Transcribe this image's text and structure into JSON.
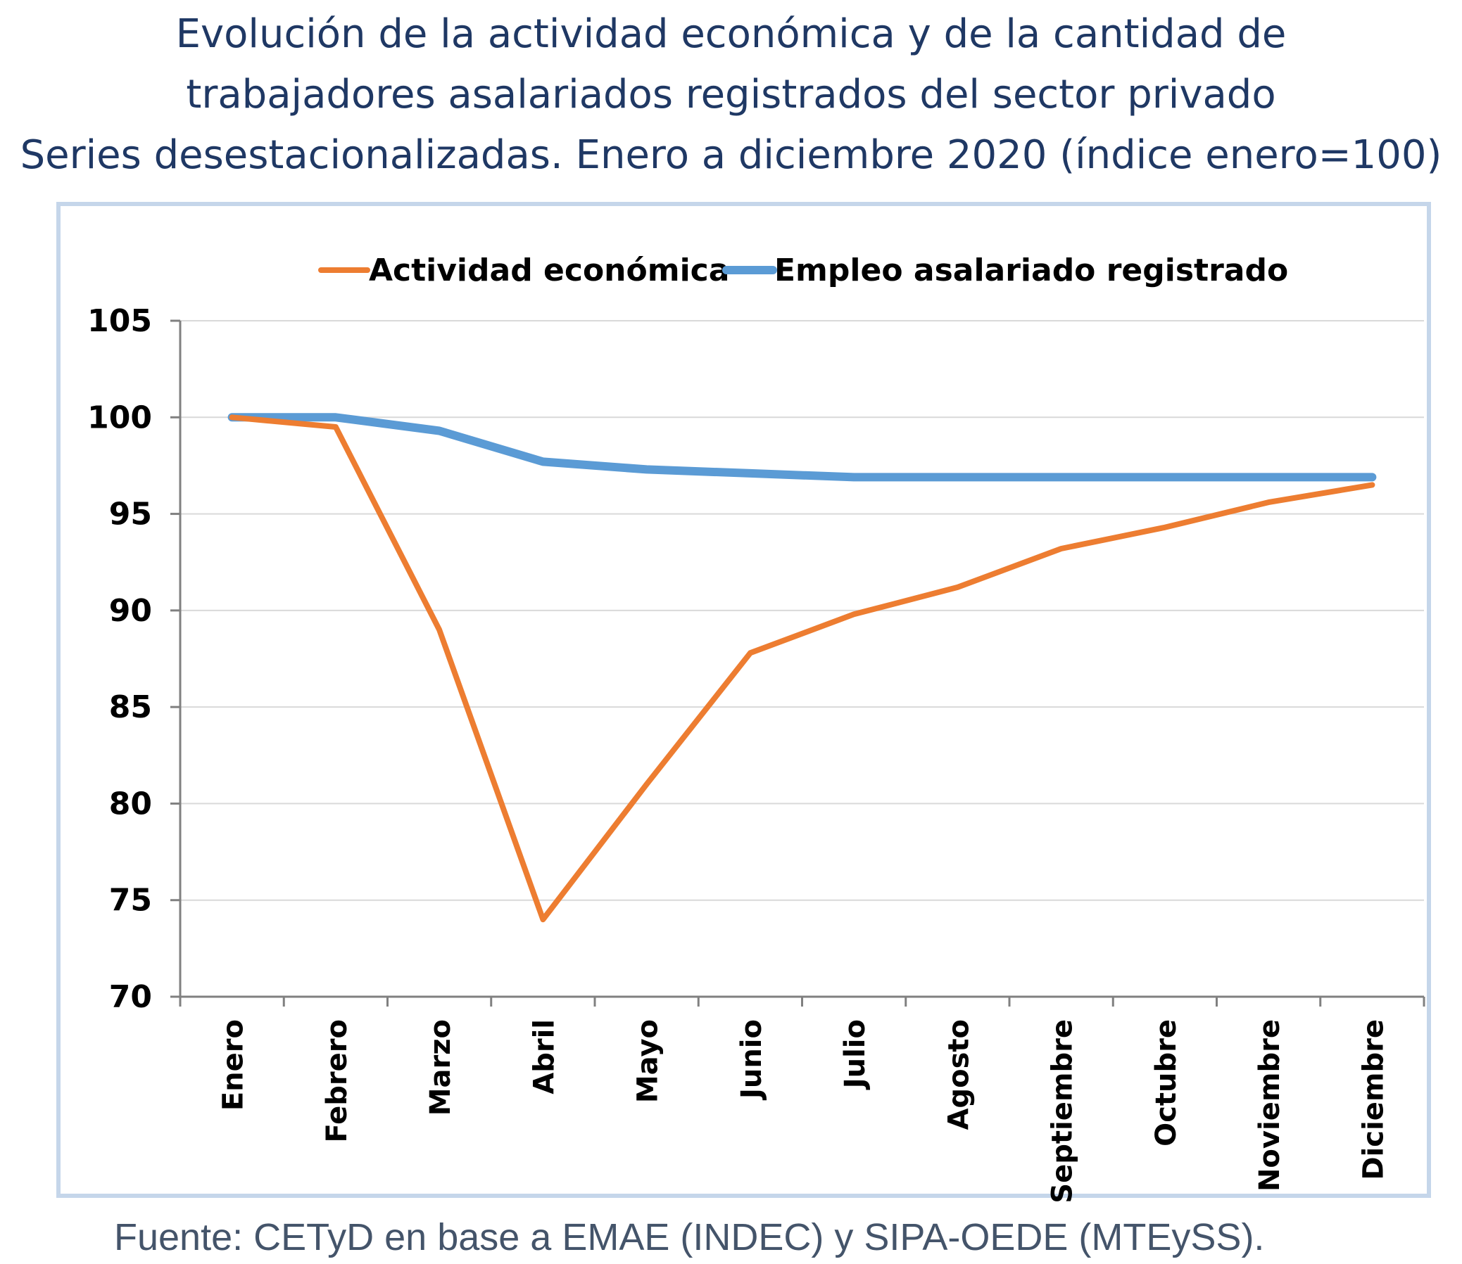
{
  "title_lines": [
    "Evolución de la actividad económica y de la cantidad de",
    "trabajadores asalariados registrados del sector privado",
    "Series desestacionalizadas. Enero a diciembre 2020 (índice enero=100)"
  ],
  "source": "Fuente: CETyD en base a EMAE (INDEC) y SIPA-OEDE (MTEySS).",
  "colors": {
    "title": "#1f3864",
    "frame": "#c5d6ea",
    "grid": "#d9d9d9",
    "axis": "#808080"
  },
  "chart_data": {
    "type": "line",
    "categories": [
      "Enero",
      "Febrero",
      "Marzo",
      "Abril",
      "Mayo",
      "Junio",
      "Julio",
      "Agosto",
      "Septiembre",
      "Octubre",
      "Noviembre",
      "Diciembre"
    ],
    "series": [
      {
        "name": "Actividad económica",
        "color": "#ed7d31",
        "values": [
          100,
          99.5,
          89.0,
          74.0,
          81.0,
          87.8,
          89.8,
          91.2,
          93.2,
          94.3,
          95.6,
          96.5
        ]
      },
      {
        "name": "Empleo asalariado registrado",
        "color": "#5b9bd5",
        "values": [
          100,
          100,
          99.3,
          97.7,
          97.3,
          97.1,
          96.9,
          96.9,
          96.9,
          96.9,
          96.9,
          96.9
        ]
      }
    ],
    "ylim": [
      70,
      105
    ],
    "yticks": [
      70,
      75,
      80,
      85,
      90,
      95,
      100,
      105
    ],
    "grid": true,
    "legend": "top"
  }
}
